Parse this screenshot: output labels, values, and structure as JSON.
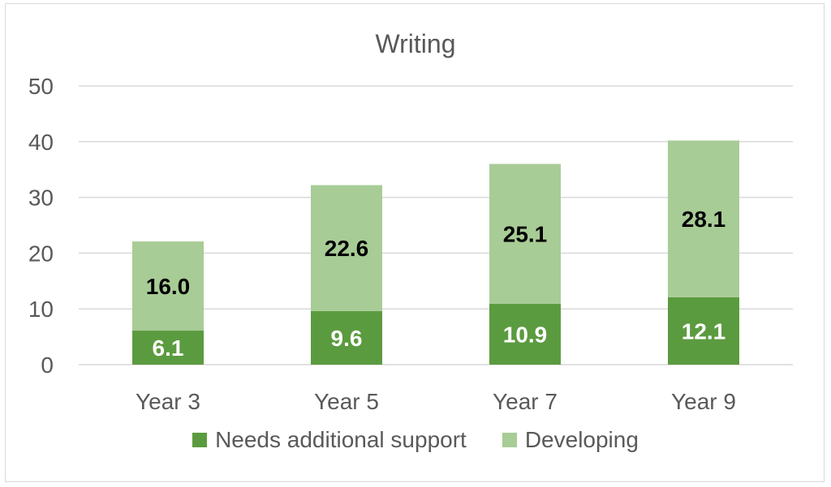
{
  "chart_data": {
    "type": "bar",
    "stacked": true,
    "title": "Writing",
    "xlabel": "",
    "ylabel": "",
    "categories": [
      "Year 3",
      "Year 5",
      "Year 7",
      "Year 9"
    ],
    "ylim": [
      0,
      50
    ],
    "yticks": [
      0,
      10,
      20,
      30,
      40,
      50
    ],
    "grid": true,
    "legend_position": "bottom",
    "series": [
      {
        "name": "Needs additional support",
        "values": [
          6.1,
          9.6,
          10.9,
          12.1
        ],
        "labels": [
          "6.1",
          "9.6",
          "10.9",
          "12.1"
        ],
        "color": "#5b9b3f",
        "label_color": "#ffffff"
      },
      {
        "name": "Developing",
        "values": [
          16.0,
          22.6,
          25.1,
          28.1
        ],
        "labels": [
          "16.0",
          "22.6",
          "25.1",
          "28.1"
        ],
        "color": "#a8cc96",
        "label_color": "#000000"
      }
    ]
  }
}
